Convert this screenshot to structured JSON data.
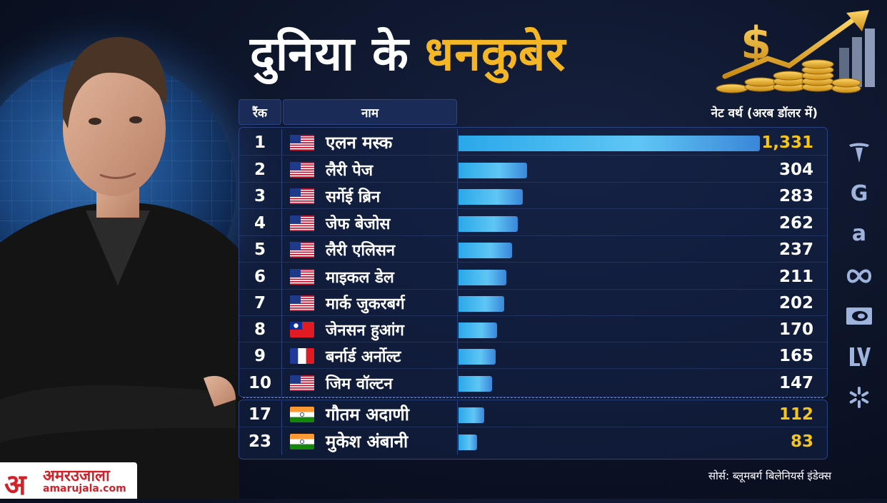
{
  "title": {
    "part1": "दुनिया के",
    "part2": "धनकुबेर"
  },
  "chart_data": {
    "type": "bar",
    "orientation": "horizontal",
    "columns": {
      "rank": "रैंक",
      "name": "नाम",
      "worth": "नेट वर्थ (अरब डॉलर में)"
    },
    "xlim": [
      0,
      1331
    ],
    "rows": [
      {
        "rank": "1",
        "flag": "us",
        "name": "एलन मस्क",
        "value": 1331,
        "label": "1,331",
        "highlight": true
      },
      {
        "rank": "2",
        "flag": "us",
        "name": "लैरी पेज",
        "value": 304,
        "label": "304"
      },
      {
        "rank": "3",
        "flag": "us",
        "name": "सर्गेई ब्रिन",
        "value": 283,
        "label": "283"
      },
      {
        "rank": "4",
        "flag": "us",
        "name": "जेफ बेजोस",
        "value": 262,
        "label": "262"
      },
      {
        "rank": "5",
        "flag": "us",
        "name": "लैरी एलिसन",
        "value": 237,
        "label": "237"
      },
      {
        "rank": "6",
        "flag": "us",
        "name": "माइकल डेल",
        "value": 211,
        "label": "211"
      },
      {
        "rank": "7",
        "flag": "us",
        "name": "मार्क जुकरबर्ग",
        "value": 202,
        "label": "202"
      },
      {
        "rank": "8",
        "flag": "tw",
        "name": "जेनसन हुआंग",
        "value": 170,
        "label": "170"
      },
      {
        "rank": "9",
        "flag": "fr",
        "name": "बर्नार्ड अर्नोल्ट",
        "value": 165,
        "label": "165"
      },
      {
        "rank": "10",
        "flag": "us",
        "name": "जिम वॉल्टन",
        "value": 147,
        "label": "147"
      },
      {
        "rank": "17",
        "flag": "in",
        "name": "गौतम अदाणी",
        "value": 112,
        "label": "112",
        "highlight": true
      },
      {
        "rank": "23",
        "flag": "in",
        "name": "मुकेश अंबानी",
        "value": 83,
        "label": "83",
        "highlight": true
      }
    ]
  },
  "colors": {
    "accent": "#f5b625",
    "bar": "#2aa8ea",
    "value_highlight": "#f5c518",
    "brand": "#d42028"
  },
  "logos": [
    "tesla-icon",
    "google-icon",
    "amazon-icon",
    "meta-icon",
    "nvidia-icon",
    "lv-icon",
    "walmart-icon"
  ],
  "brand": {
    "mark": "अ",
    "name": "अमरउजाला",
    "url": "amarujala.com"
  },
  "source": "सोर्स: ब्लूमबर्ग बिलेनियर्स इंडेक्स"
}
